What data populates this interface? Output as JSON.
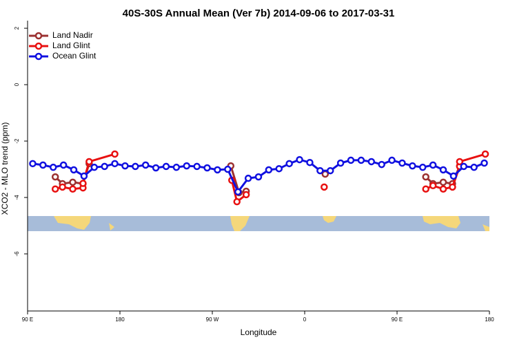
{
  "chart_data": {
    "type": "line",
    "title": "40S-30S Annual Mean (Ver 7b)   2014-09-06 to 2017-03-31",
    "x_label": "Longitude",
    "y_label": "XCO2 - MLO trend (ppm)",
    "xlim": [
      90,
      540
    ],
    "xticks": [
      {
        "value": 90,
        "label": "90 E"
      },
      180,
      {
        "value": 270,
        "label": "90 W"
      },
      {
        "value": 360,
        "label": "0"
      },
      {
        "value": 450,
        "label": "90 E"
      },
      {
        "value": 540,
        "label": "180"
      }
    ],
    "ylim": [
      -8,
      2.27
    ],
    "yticks": [
      -6,
      -4,
      -2,
      0,
      2
    ],
    "legend": "top-left",
    "series": [
      {
        "name": "Land Nadir",
        "color": "#9b3030",
        "x": [
          117,
          124,
          134,
          144,
          150,
          null,
          288,
          296,
          303,
          null,
          380,
          null,
          478,
          485,
          495,
          504,
          511
        ],
        "values": [
          -3.27,
          -3.51,
          -3.46,
          -3.51,
          -2.8,
          null,
          -2.88,
          -3.83,
          -3.78,
          null,
          -3.17,
          null,
          -3.27,
          -3.51,
          -3.46,
          -3.51,
          -2.88
        ]
      },
      {
        "name": "Land Glint",
        "color": "#e81010",
        "x": [
          117,
          124,
          134,
          144,
          144,
          150,
          175,
          null,
          289,
          294,
          303,
          null,
          379,
          null,
          478,
          485,
          495,
          504,
          511,
          511,
          536
        ],
        "values": [
          -3.7,
          -3.63,
          -3.7,
          -3.66,
          -3.5,
          -2.73,
          -2.46,
          null,
          -3.39,
          -4.15,
          -3.9,
          null,
          -3.63,
          null,
          -3.7,
          -3.58,
          -3.7,
          -3.63,
          -2.9,
          -2.73,
          -2.46
        ]
      },
      {
        "name": "Ocean Glint",
        "color": "#1010e0",
        "x": [
          95,
          105,
          115,
          125,
          135,
          145,
          155,
          165,
          175,
          185,
          195,
          205,
          215,
          225,
          235,
          245,
          255,
          265,
          275,
          285,
          295,
          305,
          315,
          325,
          335,
          345,
          355,
          365,
          375,
          385,
          395,
          405,
          415,
          425,
          435,
          445,
          455,
          465,
          475,
          485,
          495,
          505,
          515,
          525,
          535
        ],
        "values": [
          -2.8,
          -2.85,
          -2.93,
          -2.85,
          -3.02,
          -3.24,
          -2.93,
          -2.9,
          -2.8,
          -2.88,
          -2.9,
          -2.85,
          -2.95,
          -2.9,
          -2.93,
          -2.88,
          -2.9,
          -2.95,
          -3.02,
          -3.0,
          -3.8,
          -3.32,
          -3.27,
          -3.02,
          -2.98,
          -2.8,
          -2.66,
          -2.76,
          -3.05,
          -3.05,
          -2.78,
          -2.68,
          -2.68,
          -2.73,
          -2.83,
          -2.68,
          -2.78,
          -2.88,
          -2.93,
          -2.85,
          -3.02,
          -3.24,
          -2.9,
          -2.93,
          -2.78
        ]
      }
    ]
  }
}
